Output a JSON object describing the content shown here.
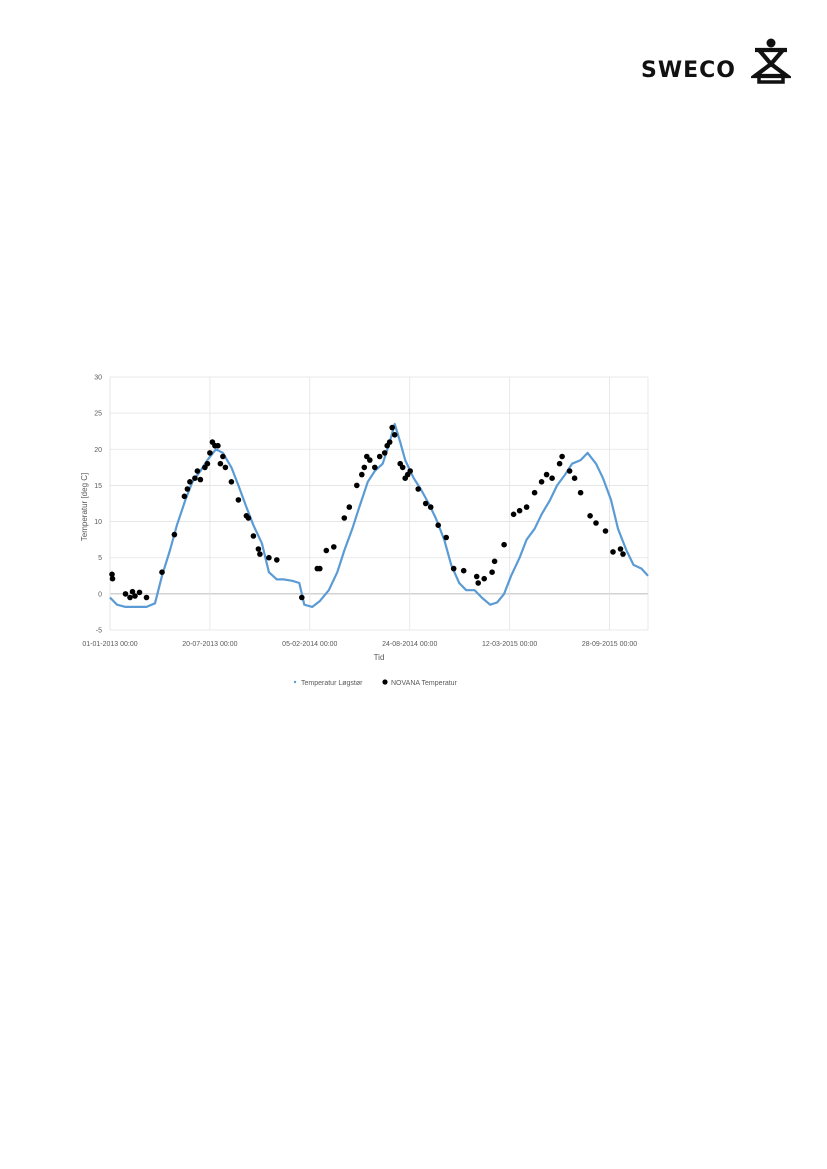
{
  "header": {
    "logo_text": "SWECO"
  },
  "chart_data": {
    "type": "line",
    "title": "",
    "xlabel": "Tid",
    "ylabel": "Temperatur [deg C]",
    "ylim": [
      -5,
      30
    ],
    "yticks": [
      -5,
      0,
      5,
      10,
      15,
      20,
      25,
      30
    ],
    "xlim": [
      "2013-01-01",
      "2015-12-14"
    ],
    "xticks": [
      "2013-01-01",
      "2013-07-20",
      "2014-02-05",
      "2014-08-24",
      "2015-03-12",
      "2015-09-28"
    ],
    "xtick_labels": [
      "01-01-2013 00:00",
      "20-07-2013 00:00",
      "05-02-2014 00:00",
      "24-08-2014 00:00",
      "12-03-2015 00:00",
      "28-09-2015 00:00"
    ],
    "grid": true,
    "legend": "bottom",
    "series": [
      {
        "name": "Temperatur Løgstør",
        "kind": "line",
        "color": "#5b9bd5",
        "points": [
          [
            "2013-01-01",
            -0.5
          ],
          [
            "2013-01-15",
            -1.5
          ],
          [
            "2013-02-01",
            -1.8
          ],
          [
            "2013-02-20",
            -1.8
          ],
          [
            "2013-03-15",
            -1.8
          ],
          [
            "2013-04-01",
            -1.3
          ],
          [
            "2013-04-15",
            2.5
          ],
          [
            "2013-05-01",
            6
          ],
          [
            "2013-05-15",
            9.5
          ],
          [
            "2013-06-01",
            13
          ],
          [
            "2013-06-15",
            15.5
          ],
          [
            "2013-07-01",
            17
          ],
          [
            "2013-07-15",
            18.5
          ],
          [
            "2013-08-01",
            20
          ],
          [
            "2013-08-15",
            19.5
          ],
          [
            "2013-09-01",
            17.5
          ],
          [
            "2013-09-15",
            15
          ],
          [
            "2013-10-01",
            12
          ],
          [
            "2013-10-15",
            9.5
          ],
          [
            "2013-11-01",
            7
          ],
          [
            "2013-11-15",
            3
          ],
          [
            "2013-12-01",
            2
          ],
          [
            "2013-12-15",
            2
          ],
          [
            "2014-01-01",
            1.8
          ],
          [
            "2014-01-15",
            1.5
          ],
          [
            "2014-01-25",
            -1.5
          ],
          [
            "2014-02-10",
            -1.8
          ],
          [
            "2014-02-25",
            -1
          ],
          [
            "2014-03-15",
            0.5
          ],
          [
            "2014-04-01",
            3
          ],
          [
            "2014-04-15",
            6
          ],
          [
            "2014-05-01",
            9
          ],
          [
            "2014-05-15",
            12
          ],
          [
            "2014-06-01",
            15.5
          ],
          [
            "2014-06-15",
            17
          ],
          [
            "2014-07-01",
            18
          ],
          [
            "2014-07-15",
            21
          ],
          [
            "2014-07-25",
            23.5
          ],
          [
            "2014-08-05",
            21
          ],
          [
            "2014-08-15",
            18.5
          ],
          [
            "2014-09-01",
            16
          ],
          [
            "2014-09-15",
            14.5
          ],
          [
            "2014-10-01",
            12.5
          ],
          [
            "2014-10-15",
            10.5
          ],
          [
            "2014-11-01",
            7.5
          ],
          [
            "2014-11-15",
            4
          ],
          [
            "2014-12-01",
            1.5
          ],
          [
            "2014-12-15",
            0.5
          ],
          [
            "2015-01-01",
            0.5
          ],
          [
            "2015-01-15",
            -0.5
          ],
          [
            "2015-02-01",
            -1.5
          ],
          [
            "2015-02-15",
            -1.2
          ],
          [
            "2015-03-01",
            0
          ],
          [
            "2015-03-15",
            2.5
          ],
          [
            "2015-04-01",
            5
          ],
          [
            "2015-04-15",
            7.5
          ],
          [
            "2015-05-01",
            9
          ],
          [
            "2015-05-15",
            11
          ],
          [
            "2015-06-01",
            13
          ],
          [
            "2015-06-15",
            15
          ],
          [
            "2015-07-01",
            16.5
          ],
          [
            "2015-07-15",
            18
          ],
          [
            "2015-08-01",
            18.5
          ],
          [
            "2015-08-15",
            19.5
          ],
          [
            "2015-09-01",
            18
          ],
          [
            "2015-09-15",
            16
          ],
          [
            "2015-10-01",
            13
          ],
          [
            "2015-10-15",
            9
          ],
          [
            "2015-11-01",
            6
          ],
          [
            "2015-11-15",
            4
          ],
          [
            "2015-12-01",
            3.5
          ],
          [
            "2015-12-14",
            2.5
          ]
        ]
      },
      {
        "name": "NOVANA Temperatur",
        "kind": "scatter",
        "color": "#000000",
        "points": [
          [
            "2013-01-05",
            2.7
          ],
          [
            "2013-01-06",
            2.1
          ],
          [
            "2013-02-01",
            0
          ],
          [
            "2013-02-10",
            -0.5
          ],
          [
            "2013-02-15",
            0.3
          ],
          [
            "2013-02-20",
            -0.3
          ],
          [
            "2013-03-01",
            0.2
          ],
          [
            "2013-03-15",
            -0.5
          ],
          [
            "2013-04-15",
            3
          ],
          [
            "2013-05-10",
            8.2
          ],
          [
            "2013-05-30",
            13.5
          ],
          [
            "2013-06-05",
            14.5
          ],
          [
            "2013-06-10",
            15.5
          ],
          [
            "2013-06-20",
            16
          ],
          [
            "2013-06-25",
            17
          ],
          [
            "2013-07-01",
            15.8
          ],
          [
            "2013-07-10",
            17.5
          ],
          [
            "2013-07-15",
            18
          ],
          [
            "2013-07-20",
            19.5
          ],
          [
            "2013-07-25",
            21
          ],
          [
            "2013-07-30",
            20.5
          ],
          [
            "2013-08-05",
            20.5
          ],
          [
            "2013-08-10",
            18
          ],
          [
            "2013-08-15",
            19
          ],
          [
            "2013-08-20",
            17.5
          ],
          [
            "2013-09-01",
            15.5
          ],
          [
            "2013-09-15",
            13
          ],
          [
            "2013-10-01",
            10.8
          ],
          [
            "2013-10-05",
            10.5
          ],
          [
            "2013-10-15",
            8
          ],
          [
            "2013-10-25",
            6.2
          ],
          [
            "2013-10-28",
            5.5
          ],
          [
            "2013-11-15",
            5
          ],
          [
            "2013-12-01",
            4.7
          ],
          [
            "2014-01-20",
            -0.5
          ],
          [
            "2014-02-20",
            3.5
          ],
          [
            "2014-02-25",
            3.5
          ],
          [
            "2014-03-10",
            6
          ],
          [
            "2014-03-25",
            6.5
          ],
          [
            "2014-04-15",
            10.5
          ],
          [
            "2014-04-25",
            12
          ],
          [
            "2014-05-10",
            15
          ],
          [
            "2014-05-20",
            16.5
          ],
          [
            "2014-05-25",
            17.5
          ],
          [
            "2014-05-30",
            19
          ],
          [
            "2014-06-05",
            18.5
          ],
          [
            "2014-06-15",
            17.5
          ],
          [
            "2014-06-25",
            19
          ],
          [
            "2014-07-05",
            19.5
          ],
          [
            "2014-07-10",
            20.5
          ],
          [
            "2014-07-15",
            21
          ],
          [
            "2014-07-20",
            23
          ],
          [
            "2014-07-25",
            22
          ],
          [
            "2014-08-05",
            18
          ],
          [
            "2014-08-10",
            17.5
          ],
          [
            "2014-08-15",
            16
          ],
          [
            "2014-08-20",
            16.5
          ],
          [
            "2014-08-25",
            17
          ],
          [
            "2014-09-10",
            14.5
          ],
          [
            "2014-09-25",
            12.5
          ],
          [
            "2014-10-05",
            12
          ],
          [
            "2014-10-20",
            9.5
          ],
          [
            "2014-11-05",
            7.8
          ],
          [
            "2014-11-20",
            3.5
          ],
          [
            "2014-12-10",
            3.2
          ],
          [
            "2015-01-05",
            2.4
          ],
          [
            "2015-01-08",
            1.5
          ],
          [
            "2015-01-20",
            2.1
          ],
          [
            "2015-02-05",
            3
          ],
          [
            "2015-02-10",
            4.5
          ],
          [
            "2015-03-01",
            6.8
          ],
          [
            "2015-03-20",
            11
          ],
          [
            "2015-04-01",
            11.5
          ],
          [
            "2015-04-15",
            12
          ],
          [
            "2015-05-01",
            14
          ],
          [
            "2015-05-15",
            15.5
          ],
          [
            "2015-05-25",
            16.5
          ],
          [
            "2015-06-05",
            16
          ],
          [
            "2015-06-20",
            18
          ],
          [
            "2015-06-25",
            19
          ],
          [
            "2015-07-10",
            17
          ],
          [
            "2015-07-20",
            16
          ],
          [
            "2015-08-01",
            14
          ],
          [
            "2015-08-20",
            10.8
          ],
          [
            "2015-09-01",
            9.8
          ],
          [
            "2015-09-20",
            8.7
          ],
          [
            "2015-10-05",
            5.8
          ],
          [
            "2015-10-20",
            6.2
          ],
          [
            "2015-10-25",
            5.5
          ]
        ]
      }
    ]
  }
}
